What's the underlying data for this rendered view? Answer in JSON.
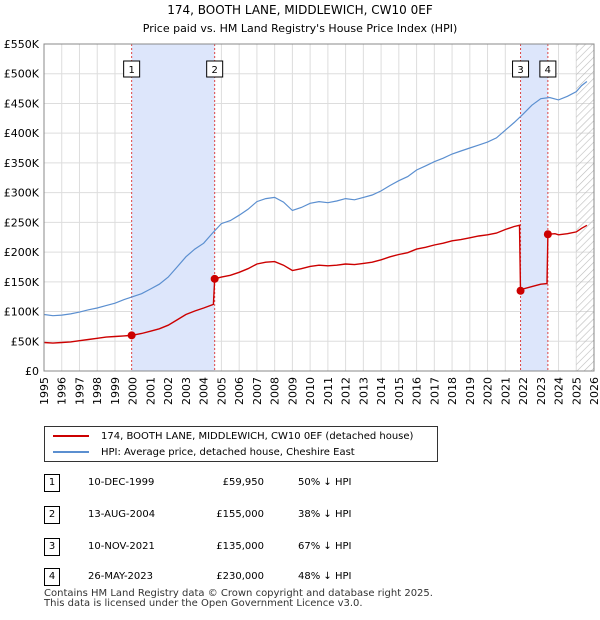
{
  "chart_data": {
    "type": "line",
    "title": "174, BOOTH LANE, MIDDLEWICH, CW10 0EF",
    "subtitle": "Price paid vs. HM Land Registry's House Price Index (HPI)",
    "ylim": [
      0,
      550000
    ],
    "xlim": [
      1995,
      2026
    ],
    "y_ticks": [
      0,
      50000,
      100000,
      150000,
      200000,
      250000,
      300000,
      350000,
      400000,
      450000,
      500000,
      550000
    ],
    "y_tick_labels": [
      "£0",
      "£50K",
      "£100K",
      "£150K",
      "£200K",
      "£250K",
      "£300K",
      "£350K",
      "£400K",
      "£450K",
      "£500K",
      "£550K"
    ],
    "x_ticks": [
      1995,
      1996,
      1997,
      1998,
      1999,
      2000,
      2001,
      2002,
      2003,
      2004,
      2005,
      2006,
      2007,
      2008,
      2009,
      2010,
      2011,
      2012,
      2013,
      2014,
      2015,
      2016,
      2017,
      2018,
      2019,
      2020,
      2021,
      2022,
      2023,
      2024,
      2025,
      2026
    ],
    "x_tick_labels": [
      "1995",
      "1996",
      "1997",
      "1998",
      "1999",
      "2000",
      "2001",
      "2002",
      "2003",
      "2004",
      "2005",
      "2006",
      "2007",
      "2008",
      "2009",
      "2010",
      "2011",
      "2012",
      "2013",
      "2014",
      "2015",
      "2016",
      "2017",
      "2018",
      "2019",
      "2020",
      "2021",
      "2022",
      "2023",
      "2024",
      "2025",
      "2026"
    ],
    "hatch_from": 2025.0,
    "shaded_spans": [
      [
        1999.94,
        2004.62
      ],
      [
        2021.86,
        2023.4
      ]
    ],
    "series": [
      {
        "name": "HPI: Average price, detached house, Cheshire East",
        "color": "#5b8fd0",
        "points": [
          [
            1995.0,
            95000
          ],
          [
            1995.5,
            93000
          ],
          [
            1996.0,
            94000
          ],
          [
            1996.5,
            96000
          ],
          [
            1997.0,
            99000
          ],
          [
            1997.5,
            103000
          ],
          [
            1998.0,
            106000
          ],
          [
            1998.5,
            110000
          ],
          [
            1999.0,
            114000
          ],
          [
            1999.5,
            120000
          ],
          [
            2000.0,
            125000
          ],
          [
            2000.5,
            130000
          ],
          [
            2001.0,
            138000
          ],
          [
            2001.5,
            146000
          ],
          [
            2002.0,
            158000
          ],
          [
            2002.5,
            175000
          ],
          [
            2003.0,
            192000
          ],
          [
            2003.5,
            205000
          ],
          [
            2004.0,
            215000
          ],
          [
            2004.5,
            232000
          ],
          [
            2005.0,
            248000
          ],
          [
            2005.5,
            253000
          ],
          [
            2006.0,
            262000
          ],
          [
            2006.5,
            272000
          ],
          [
            2007.0,
            285000
          ],
          [
            2007.5,
            290000
          ],
          [
            2008.0,
            292000
          ],
          [
            2008.5,
            284000
          ],
          [
            2009.0,
            270000
          ],
          [
            2009.5,
            275000
          ],
          [
            2010.0,
            282000
          ],
          [
            2010.5,
            285000
          ],
          [
            2011.0,
            283000
          ],
          [
            2011.5,
            286000
          ],
          [
            2012.0,
            290000
          ],
          [
            2012.5,
            288000
          ],
          [
            2013.0,
            292000
          ],
          [
            2013.5,
            296000
          ],
          [
            2014.0,
            303000
          ],
          [
            2014.5,
            312000
          ],
          [
            2015.0,
            320000
          ],
          [
            2015.5,
            327000
          ],
          [
            2016.0,
            338000
          ],
          [
            2016.5,
            345000
          ],
          [
            2017.0,
            352000
          ],
          [
            2017.5,
            358000
          ],
          [
            2018.0,
            365000
          ],
          [
            2018.5,
            370000
          ],
          [
            2019.0,
            375000
          ],
          [
            2019.5,
            380000
          ],
          [
            2020.0,
            385000
          ],
          [
            2020.5,
            392000
          ],
          [
            2021.0,
            405000
          ],
          [
            2021.5,
            418000
          ],
          [
            2022.0,
            432000
          ],
          [
            2022.5,
            447000
          ],
          [
            2023.0,
            458000
          ],
          [
            2023.5,
            460000
          ],
          [
            2024.0,
            456000
          ],
          [
            2024.5,
            462000
          ],
          [
            2025.0,
            470000
          ],
          [
            2025.3,
            480000
          ],
          [
            2025.6,
            487000
          ]
        ]
      },
      {
        "name": "174, BOOTH LANE, MIDDLEWICH, CW10 0EF (detached house)",
        "color": "#cc0000",
        "points": [
          [
            1995.0,
            48000
          ],
          [
            1995.5,
            47000
          ],
          [
            1996.0,
            48000
          ],
          [
            1996.5,
            49000
          ],
          [
            1997.0,
            51000
          ],
          [
            1997.5,
            53000
          ],
          [
            1998.0,
            55000
          ],
          [
            1998.5,
            57000
          ],
          [
            1999.0,
            58000
          ],
          [
            1999.5,
            59000
          ],
          [
            1999.94,
            59950
          ],
          [
            2000.5,
            63000
          ],
          [
            2001.0,
            67000
          ],
          [
            2001.5,
            71000
          ],
          [
            2002.0,
            77000
          ],
          [
            2002.5,
            86000
          ],
          [
            2003.0,
            95000
          ],
          [
            2003.5,
            101000
          ],
          [
            2004.0,
            106000
          ],
          [
            2004.55,
            112000
          ],
          [
            2004.62,
            155000
          ],
          [
            2005.0,
            158000
          ],
          [
            2005.5,
            161000
          ],
          [
            2006.0,
            166000
          ],
          [
            2006.5,
            172000
          ],
          [
            2007.0,
            180000
          ],
          [
            2007.5,
            183000
          ],
          [
            2008.0,
            184000
          ],
          [
            2008.5,
            178000
          ],
          [
            2009.0,
            169000
          ],
          [
            2009.5,
            172000
          ],
          [
            2010.0,
            176000
          ],
          [
            2010.5,
            178000
          ],
          [
            2011.0,
            177000
          ],
          [
            2011.5,
            178000
          ],
          [
            2012.0,
            180000
          ],
          [
            2012.5,
            179000
          ],
          [
            2013.0,
            181000
          ],
          [
            2013.5,
            183000
          ],
          [
            2014.0,
            187000
          ],
          [
            2014.5,
            192000
          ],
          [
            2015.0,
            196000
          ],
          [
            2015.5,
            199000
          ],
          [
            2016.0,
            205000
          ],
          [
            2016.5,
            208000
          ],
          [
            2017.0,
            212000
          ],
          [
            2017.5,
            215000
          ],
          [
            2018.0,
            219000
          ],
          [
            2018.5,
            221000
          ],
          [
            2019.0,
            224000
          ],
          [
            2019.5,
            227000
          ],
          [
            2020.0,
            229000
          ],
          [
            2020.5,
            232000
          ],
          [
            2021.0,
            238000
          ],
          [
            2021.5,
            243000
          ],
          [
            2021.8,
            245000
          ],
          [
            2021.86,
            135000
          ],
          [
            2022.0,
            138000
          ],
          [
            2022.5,
            142000
          ],
          [
            2023.0,
            146000
          ],
          [
            2023.35,
            147000
          ],
          [
            2023.4,
            230000
          ],
          [
            2023.8,
            231000
          ],
          [
            2024.0,
            229000
          ],
          [
            2024.5,
            231000
          ],
          [
            2025.0,
            234000
          ],
          [
            2025.3,
            240000
          ],
          [
            2025.6,
            245000
          ]
        ]
      }
    ],
    "sales": [
      {
        "label": "1",
        "x": 1999.94,
        "price": 59950
      },
      {
        "label": "2",
        "x": 2004.62,
        "price": 155000
      },
      {
        "label": "3",
        "x": 2021.86,
        "price": 135000
      },
      {
        "label": "4",
        "x": 2023.4,
        "price": 230000
      }
    ]
  },
  "legend": {
    "property_label": "174, BOOTH LANE, MIDDLEWICH, CW10 0EF (detached house)",
    "hpi_label": "HPI: Average price, detached house, Cheshire East"
  },
  "sales_table": [
    {
      "num": "1",
      "date": "10-DEC-1999",
      "price": "£59,950",
      "hpi": "50% ↓ HPI"
    },
    {
      "num": "2",
      "date": "13-AUG-2004",
      "price": "£155,000",
      "hpi": "38% ↓ HPI"
    },
    {
      "num": "3",
      "date": "10-NOV-2021",
      "price": "£135,000",
      "hpi": "67% ↓ HPI"
    },
    {
      "num": "4",
      "date": "26-MAY-2023",
      "price": "£230,000",
      "hpi": "48% ↓ HPI"
    }
  ],
  "footer": {
    "line1": "Contains HM Land Registry data © Crown copyright and database right 2025.",
    "line2": "This data is licensed under the Open Government Licence v3.0."
  },
  "colors": {
    "property": "#cc0000",
    "hpi": "#5b8fd0",
    "shade": "#dde6fb",
    "grid": "#dddddd",
    "marker_line": "#dd4444"
  }
}
